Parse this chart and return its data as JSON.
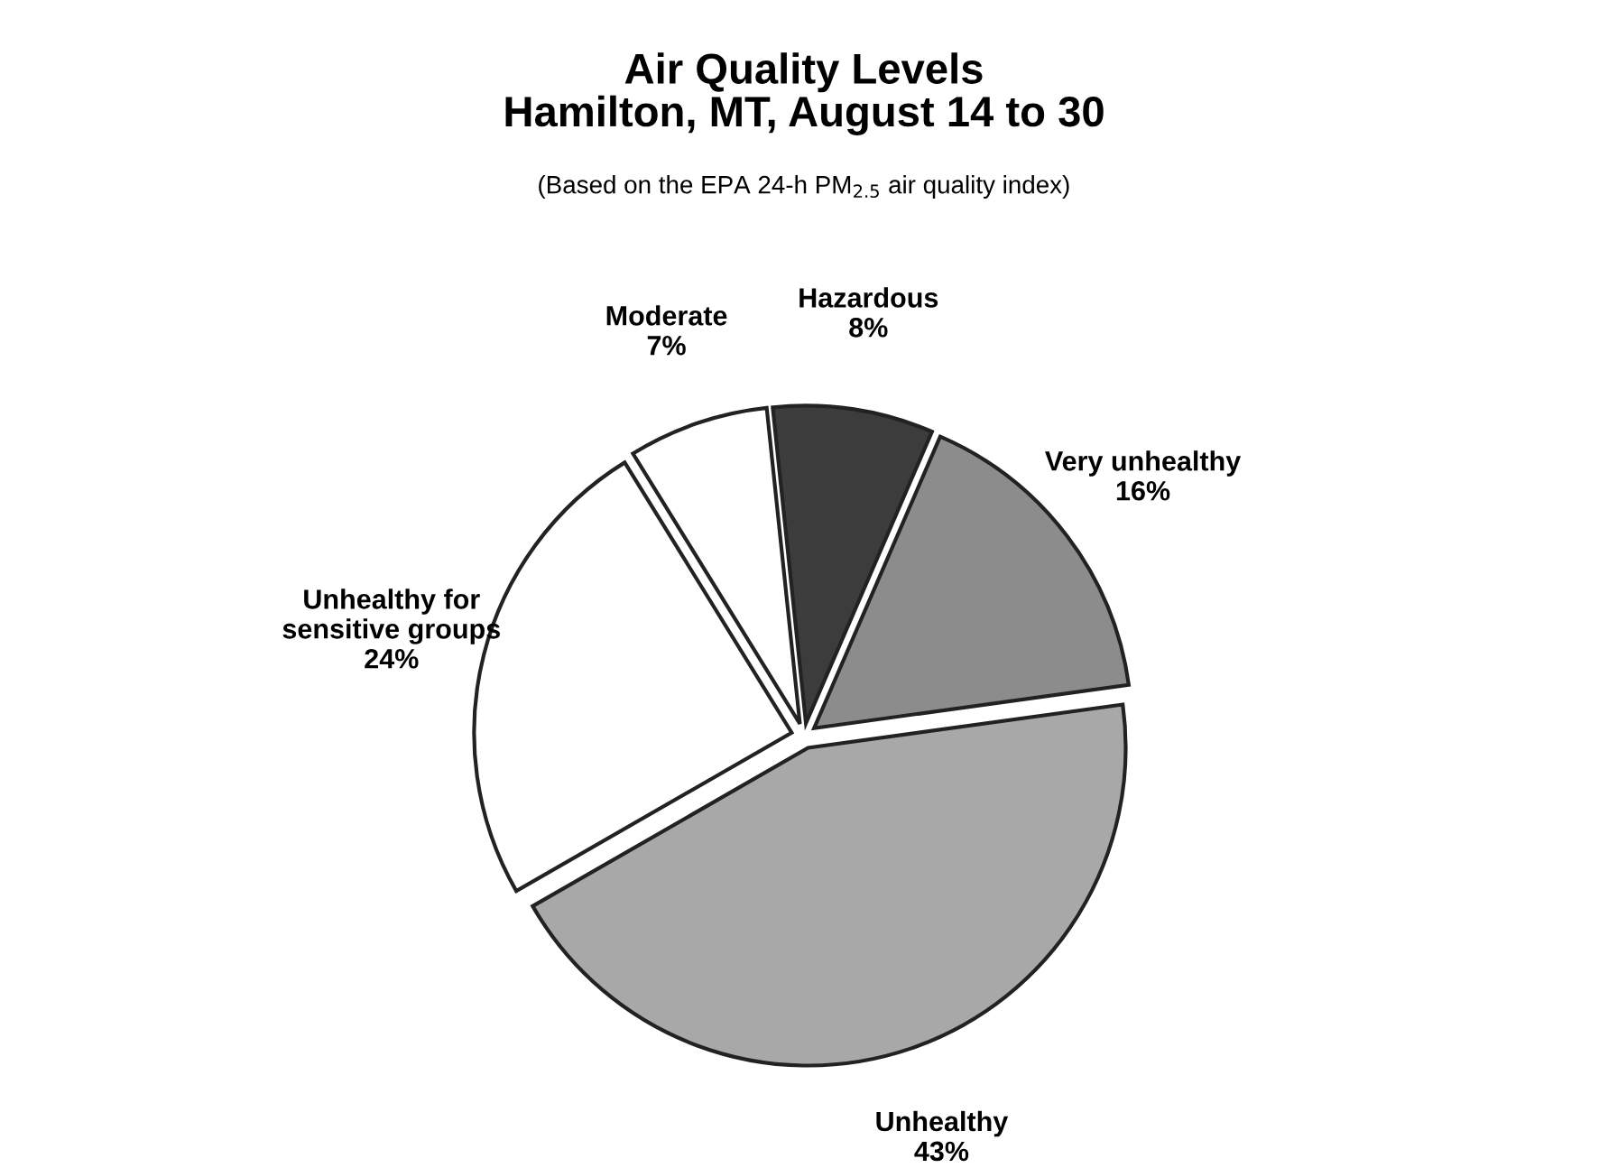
{
  "chart_data": {
    "type": "pie",
    "title": "Air Quality Levels\nHamilton, MT, August 14 to 30",
    "subtitle": "(Based on the EPA 24-h PM$_{2.5}$ air quality index)",
    "categories": [
      "Hazardous",
      "Very unhealthy",
      "Unhealthy",
      "Unhealthy for\nsensitive groups",
      "Moderate"
    ],
    "values": [
      8,
      16,
      43,
      24,
      7
    ],
    "value_labels": [
      "8%",
      "16%",
      "43%",
      "24%",
      "7%"
    ],
    "colors": [
      "#3c3c3c",
      "#8c8c8c",
      "#a8a8a8",
      "#ffffff",
      "#ffffff"
    ]
  }
}
